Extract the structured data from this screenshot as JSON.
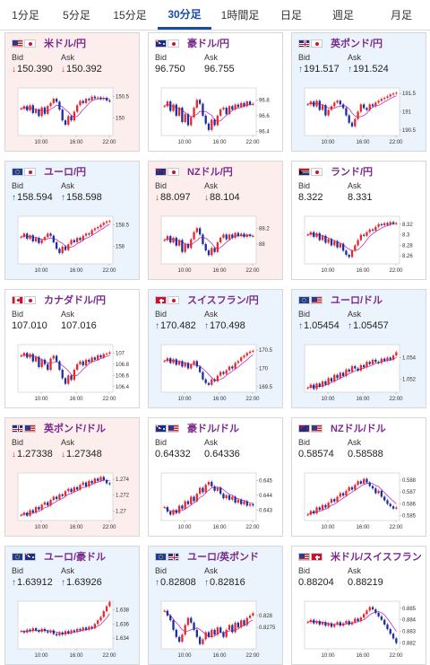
{
  "tabs": [
    {
      "label": "1分足",
      "active": false
    },
    {
      "label": "5分足",
      "active": false
    },
    {
      "label": "15分足",
      "active": false
    },
    {
      "label": "30分足",
      "active": true
    },
    {
      "label": "1時間足",
      "active": false
    },
    {
      "label": "日足",
      "active": false
    },
    {
      "label": "週足",
      "active": false
    },
    {
      "label": "月足",
      "active": false
    }
  ],
  "labels": {
    "bid": "Bid",
    "ask": "Ask"
  },
  "colors": {
    "accent": "#1a4aa8",
    "pair_name": "#7a2a8c",
    "up": "#1f58c9",
    "down": "#d9342b",
    "candle_up": "#e8282b",
    "candle_down": "#1a2fa0",
    "ma": "#c62bc4"
  },
  "pairs": [
    {
      "name": "米ドル/円",
      "flags": [
        "us",
        "jp"
      ],
      "trend": "down",
      "bid": "150.390",
      "ask": "150.392",
      "chart": {
        "x_ticks": [
          "10:00",
          "16:00",
          "22:00"
        ],
        "y_ticks": [
          "150.5",
          "150"
        ],
        "ylim": [
          149.6,
          150.7
        ],
        "closes": [
          150.22,
          150.28,
          150.18,
          150.3,
          150.12,
          150.2,
          150.05,
          150.25,
          150.1,
          150.28,
          150.35,
          150.45,
          150.38,
          150.2,
          149.95,
          149.85,
          150.05,
          149.95,
          150.15,
          150.3,
          150.4,
          150.35,
          150.45,
          150.42,
          150.5,
          150.46,
          150.48,
          150.44,
          150.47,
          150.41,
          150.39
        ]
      }
    },
    {
      "name": "豪ドル/円",
      "flags": [
        "au",
        "jp"
      ],
      "trend": "flat",
      "bid": "96.750",
      "ask": "96.755",
      "chart": {
        "x_ticks": [
          "10:00",
          "16:00",
          "22:00"
        ],
        "y_ticks": [
          "96.8",
          "96.6",
          "96.4"
        ],
        "ylim": [
          96.35,
          96.95
        ],
        "closes": [
          96.72,
          96.78,
          96.66,
          96.74,
          96.6,
          96.7,
          96.52,
          96.62,
          96.48,
          96.58,
          96.7,
          96.8,
          96.75,
          96.6,
          96.5,
          96.42,
          96.55,
          96.48,
          96.6,
          96.68,
          96.7,
          96.62,
          96.72,
          96.68,
          96.74,
          96.71,
          96.76,
          96.72,
          96.78,
          96.74,
          96.75
        ]
      }
    },
    {
      "name": "英ポンド/円",
      "flags": [
        "gb",
        "jp"
      ],
      "trend": "up",
      "bid": "191.517",
      "ask": "191.524",
      "chart": {
        "x_ticks": [
          "10:00",
          "16:00",
          "22:00"
        ],
        "y_ticks": [
          "191.5",
          "191",
          "190.5"
        ],
        "ylim": [
          190.35,
          191.65
        ],
        "closes": [
          191.2,
          191.28,
          191.15,
          191.3,
          191.05,
          191.18,
          190.9,
          191.05,
          191.15,
          191.25,
          191.3,
          191.2,
          191.1,
          190.9,
          190.7,
          190.6,
          190.8,
          191.0,
          191.2,
          191.1,
          191.05,
          191.2,
          191.15,
          191.25,
          191.3,
          191.35,
          191.38,
          191.42,
          191.47,
          191.5,
          191.52
        ]
      }
    },
    {
      "name": "ユーロ/円",
      "flags": [
        "eu",
        "jp"
      ],
      "trend": "up",
      "bid": "158.594",
      "ask": "158.598",
      "chart": {
        "x_ticks": [
          "10:00",
          "16:00",
          "22:00"
        ],
        "y_ticks": [
          "158.5",
          "158"
        ],
        "ylim": [
          157.6,
          158.7
        ],
        "closes": [
          158.22,
          158.3,
          158.18,
          158.26,
          158.12,
          158.2,
          158.08,
          158.15,
          158.22,
          158.3,
          158.25,
          158.1,
          157.95,
          157.85,
          158.0,
          157.92,
          158.05,
          158.15,
          158.1,
          158.2,
          158.15,
          158.25,
          158.3,
          158.28,
          158.38,
          158.42,
          158.45,
          158.5,
          158.55,
          158.58,
          158.59
        ]
      }
    },
    {
      "name": "NZドル/円",
      "flags": [
        "nz",
        "jp"
      ],
      "trend": "down",
      "bid": "88.097",
      "ask": "88.104",
      "chart": {
        "x_ticks": [
          "10:00",
          "16:00",
          "22:00"
        ],
        "y_ticks": [
          "88.2",
          "88"
        ],
        "ylim": [
          87.75,
          88.35
        ],
        "closes": [
          88.05,
          88.1,
          88.02,
          88.08,
          87.98,
          88.05,
          87.9,
          88.0,
          87.95,
          88.06,
          88.15,
          88.2,
          88.12,
          88.0,
          87.92,
          87.86,
          87.95,
          87.9,
          88.02,
          88.08,
          88.12,
          88.06,
          88.12,
          88.08,
          88.14,
          88.1,
          88.13,
          88.09,
          88.12,
          88.1,
          88.1
        ]
      }
    },
    {
      "name": "ランド/円",
      "flags": [
        "za",
        "jp"
      ],
      "trend": "flat",
      "bid": "8.322",
      "ask": "8.331",
      "chart": {
        "x_ticks": [
          "10:00",
          "16:00",
          "22:00"
        ],
        "y_ticks": [
          "8.32",
          "8.3",
          "8.28",
          "8.26"
        ],
        "ylim": [
          8.245,
          8.335
        ],
        "closes": [
          8.3,
          8.305,
          8.296,
          8.303,
          8.29,
          8.298,
          8.285,
          8.292,
          8.28,
          8.288,
          8.276,
          8.283,
          8.27,
          8.262,
          8.258,
          8.27,
          8.28,
          8.29,
          8.3,
          8.298,
          8.305,
          8.31,
          8.308,
          8.315,
          8.32,
          8.318,
          8.322,
          8.319,
          8.324,
          8.321,
          8.322
        ]
      }
    },
    {
      "name": "カナダドル/円",
      "flags": [
        "ca",
        "jp"
      ],
      "trend": "flat",
      "bid": "107.010",
      "ask": "107.016",
      "chart": {
        "x_ticks": [
          "10:00",
          "16:00",
          "22:00"
        ],
        "y_ticks": [
          "107",
          "106.8",
          "106.6",
          "106.4"
        ],
        "ylim": [
          106.3,
          107.15
        ],
        "closes": [
          106.95,
          107.0,
          106.92,
          106.98,
          106.85,
          106.93,
          106.75,
          106.88,
          106.8,
          106.7,
          106.9,
          106.95,
          106.85,
          106.7,
          106.55,
          106.45,
          106.6,
          106.52,
          106.7,
          106.8,
          106.85,
          106.78,
          106.88,
          106.84,
          106.92,
          106.88,
          106.96,
          106.92,
          106.98,
          106.99,
          107.01
        ]
      }
    },
    {
      "name": "スイスフラン/円",
      "flags": [
        "ch",
        "jp"
      ],
      "trend": "up",
      "bid": "170.482",
      "ask": "170.498",
      "chart": {
        "x_ticks": [
          "10:00",
          "16:00",
          "22:00"
        ],
        "y_ticks": [
          "170.5",
          "170",
          "169.5"
        ],
        "ylim": [
          169.35,
          170.65
        ],
        "closes": [
          170.2,
          170.28,
          170.15,
          170.25,
          170.1,
          170.2,
          170.05,
          170.15,
          170.0,
          170.1,
          170.2,
          170.05,
          169.9,
          169.7,
          169.6,
          169.55,
          169.7,
          169.65,
          169.8,
          169.9,
          169.85,
          169.95,
          170.05,
          170.0,
          170.15,
          170.2,
          170.3,
          170.35,
          170.42,
          170.46,
          170.48
        ]
      }
    },
    {
      "name": "ユーロ/ドル",
      "flags": [
        "eu",
        "us"
      ],
      "trend": "up",
      "bid": "1.05454",
      "ask": "1.05457",
      "chart": {
        "x_ticks": [
          "10:00",
          "16:00",
          "22:00"
        ],
        "y_ticks": [
          "1.054",
          "1.052"
        ],
        "ylim": [
          1.0508,
          1.0552
        ],
        "closes": [
          1.0512,
          1.0515,
          1.0511,
          1.0516,
          1.0513,
          1.0518,
          1.0515,
          1.0521,
          1.0518,
          1.0524,
          1.0521,
          1.0526,
          1.0523,
          1.0529,
          1.0527,
          1.0532,
          1.053,
          1.0528,
          1.0533,
          1.0531,
          1.0536,
          1.0534,
          1.0538,
          1.0536,
          1.0535,
          1.0539,
          1.0537,
          1.054,
          1.0538,
          1.0542,
          1.0545
        ]
      }
    },
    {
      "name": "英ポンド/ドル",
      "flags": [
        "gb",
        "us"
      ],
      "trend": "down",
      "bid": "1.27338",
      "ask": "1.27348",
      "chart": {
        "x_ticks": [
          "10:00",
          "16:00",
          "22:00"
        ],
        "y_ticks": [
          "1.274",
          "1.272",
          "1.27"
        ],
        "ylim": [
          1.2688,
          1.2748
        ],
        "closes": [
          1.2695,
          1.2698,
          1.2694,
          1.2701,
          1.2698,
          1.2705,
          1.2702,
          1.2708,
          1.2711,
          1.2707,
          1.2714,
          1.2718,
          1.2715,
          1.2721,
          1.2719,
          1.2725,
          1.2728,
          1.2724,
          1.273,
          1.2727,
          1.2733,
          1.2736,
          1.2731,
          1.2738,
          1.2735,
          1.2741,
          1.2738,
          1.2743,
          1.2739,
          1.2735,
          1.2734
        ]
      }
    },
    {
      "name": "豪ドル/ドル",
      "flags": [
        "au",
        "us"
      ],
      "trend": "flat",
      "bid": "0.64332",
      "ask": "0.64336",
      "chart": {
        "x_ticks": [
          "10:00",
          "16:00",
          "22:00"
        ],
        "y_ticks": [
          "0.645",
          "0.644",
          "0.643"
        ],
        "ylim": [
          0.6423,
          0.6455
        ],
        "closes": [
          0.6432,
          0.6429,
          0.6427,
          0.643,
          0.6428,
          0.6433,
          0.6431,
          0.6436,
          0.6434,
          0.6439,
          0.6436,
          0.6441,
          0.6445,
          0.6442,
          0.6447,
          0.6449,
          0.6446,
          0.6443,
          0.6445,
          0.6441,
          0.6438,
          0.644,
          0.6437,
          0.6439,
          0.6435,
          0.6437,
          0.6434,
          0.6436,
          0.6433,
          0.6434,
          0.64332
        ]
      }
    },
    {
      "name": "NZドル/ドル",
      "flags": [
        "nz",
        "us"
      ],
      "trend": "flat",
      "bid": "0.58574",
      "ask": "0.58588",
      "chart": {
        "x_ticks": [
          "10:00",
          "16:00",
          "22:00"
        ],
        "y_ticks": [
          "0.588",
          "0.587",
          "0.586",
          "0.585"
        ],
        "ylim": [
          0.5846,
          0.5886
        ],
        "closes": [
          0.5851,
          0.5854,
          0.5852,
          0.5857,
          0.5855,
          0.5859,
          0.5857,
          0.5861,
          0.5864,
          0.5862,
          0.5866,
          0.5869,
          0.5867,
          0.5871,
          0.5874,
          0.5872,
          0.5876,
          0.5879,
          0.5877,
          0.5881,
          0.5878,
          0.5875,
          0.5873,
          0.5869,
          0.5871,
          0.5866,
          0.5863,
          0.586,
          0.5858,
          0.5856,
          0.5857
        ]
      }
    },
    {
      "name": "ユーロ/豪ドル",
      "flags": [
        "eu",
        "au"
      ],
      "trend": "up",
      "bid": "1.63912",
      "ask": "1.63926",
      "chart": {
        "x_ticks": [
          "10:00",
          "16:00",
          "22:00"
        ],
        "y_ticks": [
          "1.638",
          "1.636",
          "1.634"
        ],
        "ylim": [
          1.6325,
          1.6392
        ],
        "closes": [
          1.635,
          1.6348,
          1.6352,
          1.635,
          1.6354,
          1.6351,
          1.6349,
          1.6353,
          1.635,
          1.6348,
          1.6351,
          1.6346,
          1.6344,
          1.6348,
          1.6345,
          1.635,
          1.6347,
          1.6351,
          1.6349,
          1.6353,
          1.6351,
          1.6355,
          1.6352,
          1.6356,
          1.6354,
          1.636,
          1.6365,
          1.637,
          1.6378,
          1.6385,
          1.6391
        ]
      }
    },
    {
      "name": "ユーロ/英ポンド",
      "flags": [
        "eu",
        "gb"
      ],
      "trend": "up",
      "bid": "0.82808",
      "ask": "0.82816",
      "chart": {
        "x_ticks": [
          "10:00",
          "16:00",
          "22:00"
        ],
        "y_ticks": [
          "0.828",
          "0.8275"
        ],
        "ylim": [
          0.8266,
          0.8286
        ],
        "closes": [
          0.8282,
          0.828,
          0.8278,
          0.8274,
          0.8271,
          0.8269,
          0.8272,
          0.8276,
          0.8279,
          0.8277,
          0.8274,
          0.8271,
          0.8268,
          0.827,
          0.8273,
          0.8271,
          0.8274,
          0.8272,
          0.8275,
          0.8273,
          0.8271,
          0.8274,
          0.8276,
          0.8273,
          0.8277,
          0.8275,
          0.8278,
          0.8276,
          0.8279,
          0.828,
          0.8281
        ]
      }
    },
    {
      "name": "米ドル/スイスフラン",
      "flags": [
        "us",
        "ch"
      ],
      "trend": "flat",
      "bid": "0.88204",
      "ask": "0.88219",
      "chart": {
        "x_ticks": [
          "10:00",
          "16:00",
          "22:00"
        ],
        "y_ticks": [
          "0.885",
          "0.884",
          "0.883",
          "0.882"
        ],
        "ylim": [
          0.8815,
          0.8856
        ],
        "closes": [
          0.8838,
          0.884,
          0.8837,
          0.8839,
          0.8836,
          0.8838,
          0.8835,
          0.8837,
          0.8834,
          0.8836,
          0.8838,
          0.8835,
          0.8837,
          0.8839,
          0.8836,
          0.8838,
          0.8841,
          0.8839,
          0.8842,
          0.8845,
          0.8848,
          0.8851,
          0.8849,
          0.8846,
          0.8843,
          0.884,
          0.8836,
          0.8832,
          0.8828,
          0.8824,
          0.882
        ]
      }
    }
  ]
}
